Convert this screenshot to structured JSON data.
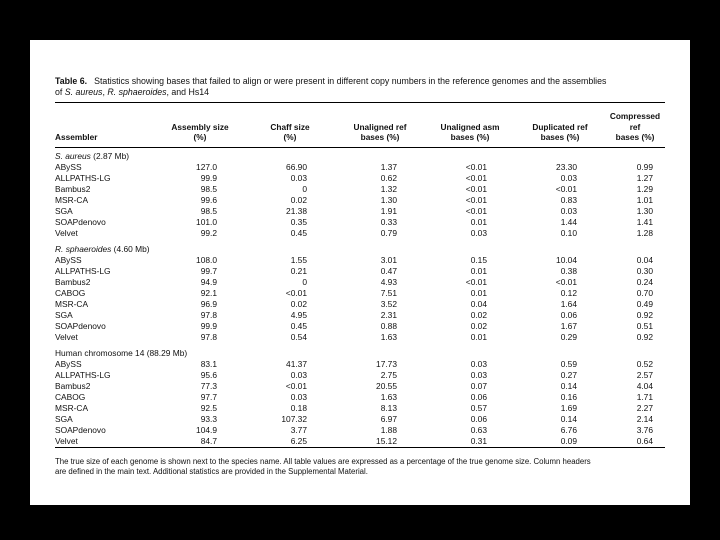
{
  "caption": {
    "label": "Table 6.",
    "line1": "Statistics showing bases that failed to align or were present in different copy numbers in the reference genomes and the assemblies",
    "line2_prefix": "of ",
    "species_1": "S. aureus",
    "sep": ", ",
    "species_2": "R. sphaeroides",
    "line2_suffix": ", and Hs14"
  },
  "columns": [
    {
      "line1": "Assembler",
      "line2": ""
    },
    {
      "line1": "Assembly size",
      "line2": "(%)"
    },
    {
      "line1": "Chaff size",
      "line2": "(%)"
    },
    {
      "line1": "Unaligned ref",
      "line2": "bases (%)"
    },
    {
      "line1": "Unaligned asm",
      "line2": "bases (%)"
    },
    {
      "line1": "Duplicated ref",
      "line2": "bases (%)"
    },
    {
      "line1": "Compressed ref",
      "line2": "bases (%)"
    }
  ],
  "sections": [
    {
      "species": "S. aureus",
      "italic": true,
      "size": "(2.87 Mb)",
      "rows": [
        {
          "assembler": "ABySS",
          "values": [
            "127.0",
            "66.90",
            "1.37",
            "<0.01",
            "23.30",
            "0.99"
          ]
        },
        {
          "assembler": "ALLPATHS-LG",
          "values": [
            "99.9",
            "0.03",
            "0.62",
            "<0.01",
            "0.03",
            "1.27"
          ]
        },
        {
          "assembler": "Bambus2",
          "values": [
            "98.5",
            "0",
            "1.32",
            "<0.01",
            "<0.01",
            "1.29"
          ]
        },
        {
          "assembler": "MSR-CA",
          "values": [
            "99.6",
            "0.02",
            "1.30",
            "<0.01",
            "0.83",
            "1.01"
          ]
        },
        {
          "assembler": "SGA",
          "values": [
            "98.5",
            "21.38",
            "1.91",
            "<0.01",
            "0.03",
            "1.30"
          ]
        },
        {
          "assembler": "SOAPdenovo",
          "values": [
            "101.0",
            "0.35",
            "0.33",
            "0.01",
            "1.44",
            "1.41"
          ]
        },
        {
          "assembler": "Velvet",
          "values": [
            "99.2",
            "0.45",
            "0.79",
            "0.03",
            "0.10",
            "1.28"
          ]
        }
      ]
    },
    {
      "species": "R. sphaeroides",
      "italic": true,
      "size": "(4.60 Mb)",
      "rows": [
        {
          "assembler": "ABySS",
          "values": [
            "108.0",
            "1.55",
            "3.01",
            "0.15",
            "10.04",
            "0.04"
          ]
        },
        {
          "assembler": "ALLPATHS-LG",
          "values": [
            "99.7",
            "0.21",
            "0.47",
            "0.01",
            "0.38",
            "0.30"
          ]
        },
        {
          "assembler": "Bambus2",
          "values": [
            "94.9",
            "0",
            "4.93",
            "<0.01",
            "<0.01",
            "0.24"
          ]
        },
        {
          "assembler": "CABOG",
          "values": [
            "92.1",
            "<0.01",
            "7.51",
            "0.01",
            "0.12",
            "0.70"
          ]
        },
        {
          "assembler": "MSR-CA",
          "values": [
            "96.9",
            "0.02",
            "3.52",
            "0.04",
            "1.64",
            "0.49"
          ]
        },
        {
          "assembler": "SGA",
          "values": [
            "97.8",
            "4.95",
            "2.31",
            "0.02",
            "0.06",
            "0.92"
          ]
        },
        {
          "assembler": "SOAPdenovo",
          "values": [
            "99.9",
            "0.45",
            "0.88",
            "0.02",
            "1.67",
            "0.51"
          ]
        },
        {
          "assembler": "Velvet",
          "values": [
            "97.8",
            "0.54",
            "1.63",
            "0.01",
            "0.29",
            "0.92"
          ]
        }
      ]
    },
    {
      "species": "Human chromosome 14",
      "italic": false,
      "size": "(88.29 Mb)",
      "rows": [
        {
          "assembler": "ABySS",
          "values": [
            "83.1",
            "41.37",
            "17.73",
            "0.03",
            "0.59",
            "0.52"
          ]
        },
        {
          "assembler": "ALLPATHS-LG",
          "values": [
            "95.6",
            "0.03",
            "2.75",
            "0.03",
            "0.27",
            "2.57"
          ]
        },
        {
          "assembler": "Bambus2",
          "values": [
            "77.3",
            "<0.01",
            "20.55",
            "0.07",
            "0.14",
            "4.04"
          ]
        },
        {
          "assembler": "CABOG",
          "values": [
            "97.7",
            "0.03",
            "1.63",
            "0.06",
            "0.16",
            "1.71"
          ]
        },
        {
          "assembler": "MSR-CA",
          "values": [
            "92.5",
            "0.18",
            "8.13",
            "0.57",
            "1.69",
            "2.27"
          ]
        },
        {
          "assembler": "SGA",
          "values": [
            "93.3",
            "107.32",
            "6.97",
            "0.06",
            "0.14",
            "2.14"
          ]
        },
        {
          "assembler": "SOAPdenovo",
          "values": [
            "104.9",
            "3.77",
            "1.88",
            "0.63",
            "6.76",
            "3.76"
          ]
        },
        {
          "assembler": "Velvet",
          "values": [
            "84.7",
            "6.25",
            "15.12",
            "0.31",
            "0.09",
            "0.64"
          ]
        }
      ]
    }
  ],
  "footnote": {
    "line1": "The true size of each genome is shown next to the species name. All table values are expressed as a percentage of the true genome size. Column headers",
    "line2": "are defined in the main text. Additional statistics are provided in the Supplemental Material."
  }
}
